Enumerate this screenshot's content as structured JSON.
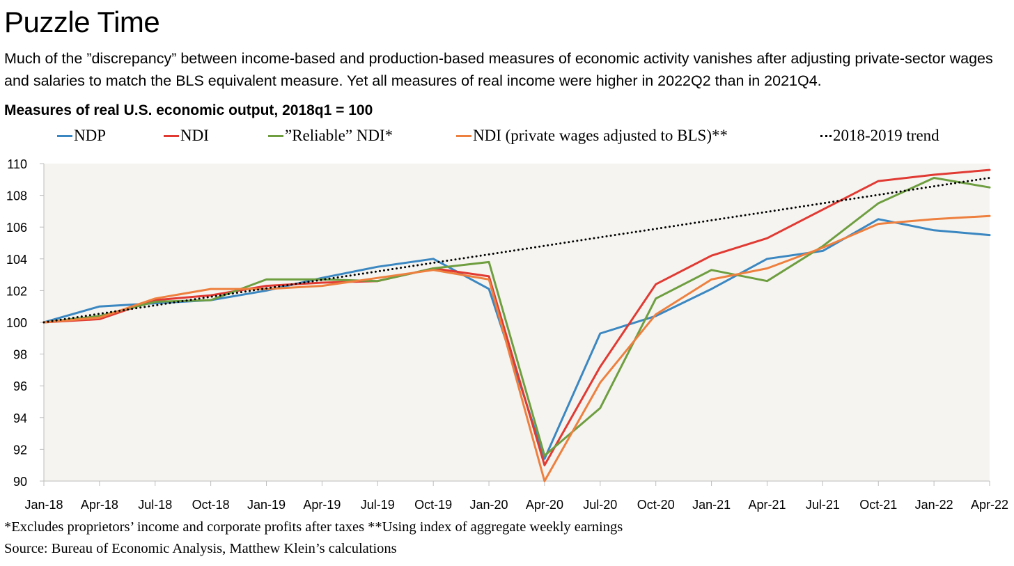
{
  "title": "Puzzle Time",
  "subtitle": "Much of the ”discrepancy” between income-based and production-based measures of economic activity vanishes after adjusting private-sector wages and salaries to match the BLS equivalent measure. Yet all measures of real income were higher in 2022Q2 than in 2021Q4.",
  "chart_heading": "Measures of real U.S. economic output, 2018q1 = 100",
  "footnote": "*Excludes proprietors’ income and corporate profits after taxes **Using index of aggregate weekly earnings",
  "source": "Source: Bureau of Economic Analysis, Matthew Klein’s calculations",
  "chart_data": {
    "type": "line",
    "x": [
      "Jan-18",
      "Apr-18",
      "Jul-18",
      "Oct-18",
      "Jan-19",
      "Apr-19",
      "Jul-19",
      "Oct-19",
      "Jan-20",
      "Apr-20",
      "Jul-20",
      "Oct-20",
      "Jan-21",
      "Apr-21",
      "Jul-21",
      "Oct-21",
      "Jan-22",
      "Apr-22"
    ],
    "ylim": [
      90,
      110
    ],
    "yticks": [
      90,
      92,
      94,
      96,
      98,
      100,
      102,
      104,
      106,
      108,
      110
    ],
    "grid": false,
    "background": "#f5f4f0",
    "legend_placement": "top",
    "series": [
      {
        "name": "NDP",
        "color": "#3b87c1",
        "style": "solid",
        "values": [
          100.0,
          101.0,
          101.2,
          101.4,
          102.0,
          102.8,
          103.5,
          104.0,
          102.1,
          91.4,
          99.3,
          100.4,
          102.1,
          104.0,
          104.5,
          106.5,
          105.8,
          105.5
        ]
      },
      {
        "name": "NDI",
        "color": "#e03a33",
        "style": "solid",
        "values": [
          100.0,
          100.2,
          101.4,
          101.7,
          102.3,
          102.5,
          102.6,
          103.4,
          102.9,
          91.0,
          97.2,
          102.4,
          104.2,
          105.3,
          107.1,
          108.9,
          109.3,
          109.6
        ]
      },
      {
        "name": "”Reliable” NDI*",
        "color": "#6e9e40",
        "style": "solid",
        "values": [
          100.0,
          100.4,
          101.3,
          101.4,
          102.7,
          102.7,
          102.6,
          103.4,
          103.8,
          91.6,
          94.6,
          101.5,
          103.3,
          102.6,
          104.8,
          107.5,
          109.1,
          108.5
        ]
      },
      {
        "name": "NDI (private wages adjusted to BLS)**",
        "color": "#ee803f",
        "style": "solid",
        "values": [
          100.0,
          100.3,
          101.5,
          102.1,
          102.1,
          102.3,
          102.8,
          103.3,
          102.7,
          90.0,
          96.2,
          100.5,
          102.7,
          103.4,
          104.7,
          106.2,
          106.5,
          106.7
        ]
      },
      {
        "name": "2018-2019 trend",
        "color": "#000000",
        "style": "dotted",
        "values": [
          100.0,
          100.54,
          101.07,
          101.61,
          102.14,
          102.68,
          103.21,
          103.75,
          104.28,
          104.82,
          105.36,
          105.89,
          106.43,
          106.96,
          107.5,
          108.03,
          108.57,
          109.1
        ]
      }
    ]
  }
}
